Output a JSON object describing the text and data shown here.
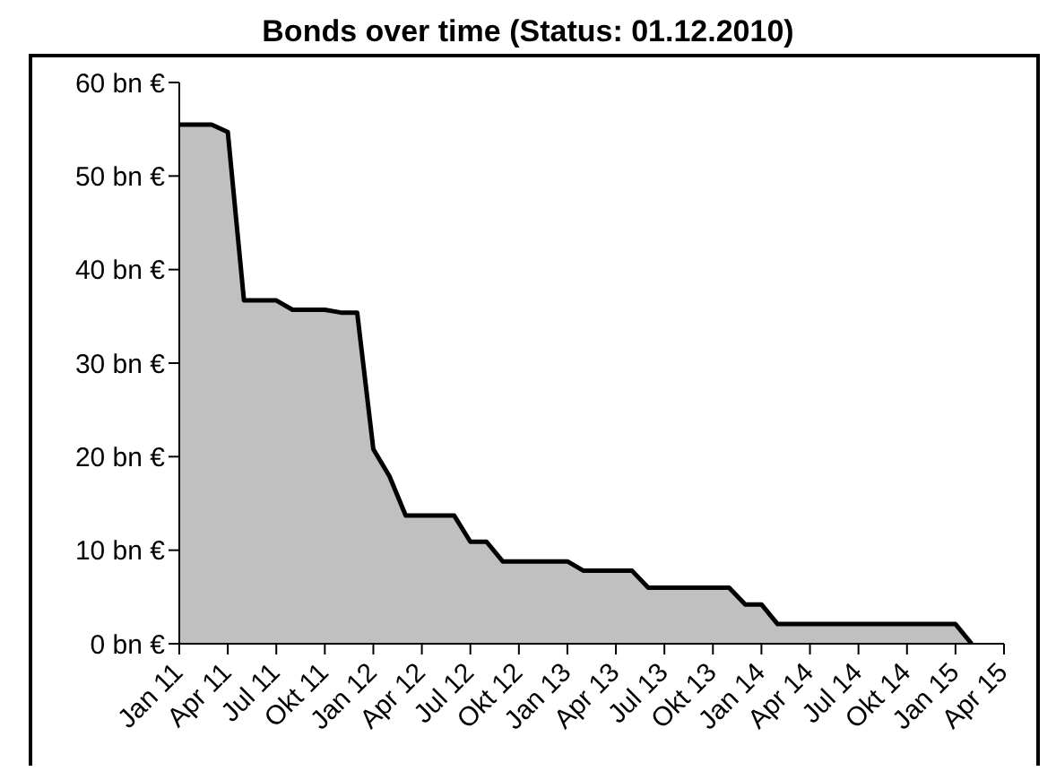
{
  "chart_data": {
    "type": "area",
    "title": "Bonds over time (Status: 01.12.2010)",
    "x": [
      "2011-01",
      "2011-03",
      "2011-04",
      "2011-05",
      "2011-07",
      "2011-08",
      "2011-10",
      "2011-11",
      "2011-12",
      "2012-01",
      "2012-02",
      "2012-03",
      "2012-06",
      "2012-07",
      "2012-08",
      "2012-09",
      "2013-01",
      "2013-02",
      "2013-05",
      "2013-06",
      "2013-11",
      "2013-12",
      "2014-01",
      "2014-02",
      "2015-01",
      "2015-02"
    ],
    "series": [
      {
        "color": "#c0c0c0",
        "values": [
          55.5,
          55.5,
          54.7,
          36.7,
          36.7,
          35.7,
          35.7,
          35.4,
          35.4,
          20.8,
          17.9,
          13.7,
          13.7,
          10.9,
          10.9,
          8.8,
          8.8,
          7.8,
          7.8,
          6.0,
          6.0,
          4.2,
          4.2,
          2.1,
          2.1,
          0
        ]
      }
    ],
    "xlim": [
      "2011-01",
      "2015-04"
    ],
    "xticks": [
      {
        "value": "2011-01",
        "label": "Jan 11"
      },
      {
        "value": "2011-04",
        "label": "Apr 11"
      },
      {
        "value": "2011-07",
        "label": "Jul 11"
      },
      {
        "value": "2011-10",
        "label": "Okt 11"
      },
      {
        "value": "2012-01",
        "label": "Jan 12"
      },
      {
        "value": "2012-04",
        "label": "Apr 12"
      },
      {
        "value": "2012-07",
        "label": "Jul 12"
      },
      {
        "value": "2012-10",
        "label": "Okt 12"
      },
      {
        "value": "2013-01",
        "label": "Jan 13"
      },
      {
        "value": "2013-04",
        "label": "Apr 13"
      },
      {
        "value": "2013-07",
        "label": "Jul 13"
      },
      {
        "value": "2013-10",
        "label": "Okt 13"
      },
      {
        "value": "2014-01",
        "label": "Jan 14"
      },
      {
        "value": "2014-04",
        "label": "Apr 14"
      },
      {
        "value": "2014-07",
        "label": "Jul 14"
      },
      {
        "value": "2014-10",
        "label": "Okt 14"
      },
      {
        "value": "2015-01",
        "label": "Jan 15"
      },
      {
        "value": "2015-04",
        "label": "Apr 15"
      }
    ],
    "ylim": [
      0,
      60
    ],
    "yticks": [
      {
        "value": 0,
        "label": "0 bn €"
      },
      {
        "value": 10,
        "label": "10 bn €"
      },
      {
        "value": 20,
        "label": "20 bn €"
      },
      {
        "value": 30,
        "label": "30 bn €"
      },
      {
        "value": 40,
        "label": "40 bn €"
      },
      {
        "value": 50,
        "label": "50 bn €"
      },
      {
        "value": 60,
        "label": "60 bn €"
      }
    ],
    "grid": false,
    "legend": false,
    "marker": "none",
    "line_style": "solid"
  }
}
